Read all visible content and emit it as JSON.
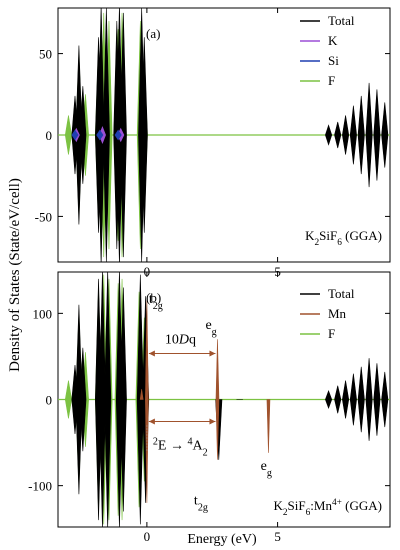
{
  "figure": {
    "ylabel": "Density of States (State/eV/cell)",
    "xlabel": "Energy (eV)"
  },
  "colors": {
    "Total": "#000000",
    "K": "#9b4fd6",
    "Si": "#1f3fb0",
    "F": "#7cc242",
    "Mn": "#a0522d",
    "arrow": "#a0522d",
    "zero": "#7cc242"
  },
  "chart_data": [
    {
      "type": "line",
      "panel_label": "(a)",
      "title": "K$_2$SiF$_6$ (GGA)",
      "title_parts": [
        "K",
        "2",
        "SiF",
        "6",
        " (GGA)"
      ],
      "xlim": [
        -3.4,
        9.3
      ],
      "ylim": [
        -78,
        78
      ],
      "xticks": [
        0,
        5
      ],
      "xtick_labels": [
        "0",
        "5"
      ],
      "yticks": [
        -50,
        0,
        50
      ],
      "ytick_labels": [
        "-50",
        "0",
        "50"
      ],
      "legend_position": "top-right",
      "series": [
        {
          "name": "Total",
          "peaks": [
            [
              -2.75,
              24
            ],
            [
              -2.6,
              55
            ],
            [
              -2.45,
              30
            ],
            [
              -1.85,
              60
            ],
            [
              -1.75,
              80
            ],
            [
              -1.55,
              78
            ],
            [
              -1.15,
              70
            ],
            [
              -1.05,
              80
            ],
            [
              -0.9,
              75
            ],
            [
              -0.2,
              78
            ],
            [
              -0.1,
              60
            ],
            [
              6.95,
              6
            ],
            [
              7.3,
              8
            ],
            [
              7.6,
              12
            ],
            [
              7.9,
              18
            ],
            [
              8.2,
              24
            ],
            [
              8.5,
              32
            ],
            [
              8.8,
              28
            ],
            [
              9.1,
              20
            ]
          ]
        },
        {
          "name": "K",
          "peaks": [
            [
              -2.7,
              4
            ],
            [
              -1.7,
              5
            ],
            [
              -1.0,
              4
            ]
          ]
        },
        {
          "name": "Si",
          "peaks": [
            [
              -2.75,
              3
            ],
            [
              -1.8,
              3
            ],
            [
              -1.1,
              3
            ]
          ]
        },
        {
          "name": "F",
          "peaks": [
            [
              -3.0,
              12
            ],
            [
              -2.6,
              50
            ],
            [
              -2.35,
              25
            ],
            [
              -1.85,
              55
            ],
            [
              -1.65,
              75
            ],
            [
              -1.45,
              70
            ],
            [
              -1.1,
              65
            ],
            [
              -0.95,
              75
            ],
            [
              -0.25,
              70
            ],
            [
              -0.1,
              45
            ],
            [
              7.3,
              2
            ],
            [
              7.9,
              3
            ],
            [
              8.5,
              4
            ]
          ]
        }
      ]
    },
    {
      "type": "line",
      "panel_label": "(b)",
      "title": "K$_2$SiF$_6$:Mn$^{4+}$ (GGA)",
      "title_parts": [
        "K",
        "2",
        "SiF",
        "6",
        ":Mn",
        "4+",
        " (GGA)"
      ],
      "xlim": [
        -3.4,
        9.3
      ],
      "ylim": [
        -148,
        148
      ],
      "xticks": [
        0,
        5
      ],
      "xtick_labels": [
        "0",
        "5"
      ],
      "yticks": [
        -100,
        0,
        100
      ],
      "ytick_labels": [
        "-100",
        "0",
        "100"
      ],
      "legend_position": "top-right",
      "annotations": {
        "t2g_top": [
          "t",
          "2g"
        ],
        "eg_top": [
          "e",
          "g"
        ],
        "dq": [
          "10",
          "D",
          "q"
        ],
        "transition": [
          "2",
          "E → ",
          "4",
          "A",
          "2"
        ],
        "eg_bottom": [
          "e",
          "g"
        ],
        "t2g_bottom": [
          "t",
          "2g"
        ]
      },
      "series": [
        {
          "name": "Total",
          "peaks": [
            [
              -2.75,
              40
            ],
            [
              -2.6,
              110
            ],
            [
              -2.45,
              60
            ],
            [
              -1.85,
              140
            ],
            [
              -1.7,
              150
            ],
            [
              -1.5,
              150
            ],
            [
              -1.05,
              150
            ],
            [
              -0.9,
              130
            ],
            [
              -0.25,
              145
            ],
            [
              -0.05,
              120
            ],
            [
              2.75,
              -70
            ],
            [
              3.55,
              0
            ],
            [
              6.95,
              10
            ],
            [
              7.3,
              16
            ],
            [
              7.6,
              22
            ],
            [
              7.9,
              30
            ],
            [
              8.2,
              38
            ],
            [
              8.5,
              48
            ],
            [
              8.8,
              42
            ],
            [
              9.1,
              32
            ]
          ]
        },
        {
          "name": "Mn",
          "peaks": [
            [
              0.0,
              115
            ],
            [
              0.0,
              -120
            ],
            [
              2.7,
              70
            ],
            [
              2.7,
              -70
            ],
            [
              4.65,
              -62
            ],
            [
              -0.2,
              12
            ]
          ]
        },
        {
          "name": "F",
          "peaks": [
            [
              -3.0,
              22
            ],
            [
              -2.6,
              100
            ],
            [
              -2.35,
              55
            ],
            [
              -1.85,
              130
            ],
            [
              -1.65,
              145
            ],
            [
              -1.45,
              140
            ],
            [
              -1.1,
              135
            ],
            [
              -0.95,
              140
            ],
            [
              -0.3,
              125
            ],
            [
              -0.1,
              95
            ],
            [
              7.3,
              4
            ],
            [
              7.9,
              6
            ],
            [
              8.5,
              8
            ]
          ]
        }
      ]
    }
  ]
}
